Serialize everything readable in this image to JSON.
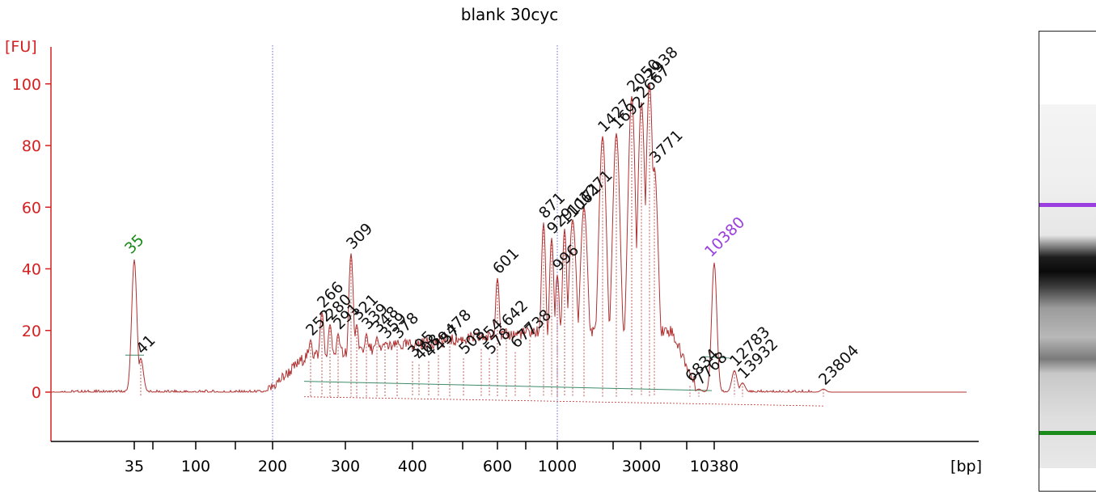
{
  "chart_data": {
    "type": "line",
    "title": "blank 30cyc",
    "ylabel": "[FU]",
    "xlabel": "[bp]",
    "ylim": [
      -16,
      112
    ],
    "y_ticks": [
      "0",
      "20",
      "40",
      "60",
      "80",
      "100"
    ],
    "x_tick_labels": [
      "35",
      "100",
      "200",
      "300",
      "400",
      "600",
      "1000",
      "3000",
      "10380"
    ],
    "grid": false,
    "colors": {
      "axis": "#d42020",
      "trace": "#b03030",
      "marker": "#1a8a1a",
      "upper_marker": "#9a3ee0",
      "baseline": "#3e8c6a",
      "region_line": "#6a6ad0"
    },
    "markers": [
      {
        "label": "35",
        "x": 166,
        "height": 43,
        "color": "green"
      },
      {
        "label": "10380",
        "x": 883,
        "height": 42,
        "color": "purple"
      }
    ],
    "region_lines_x": [
      337,
      689
    ],
    "peaks": [
      {
        "label": "41",
        "x": 174,
        "y": 11
      },
      {
        "label": "252",
        "x": 384,
        "y": 17
      },
      {
        "label": "266",
        "x": 398,
        "y": 26
      },
      {
        "label": "280",
        "x": 408,
        "y": 22
      },
      {
        "label": "291",
        "x": 418,
        "y": 19
      },
      {
        "label": "309",
        "x": 434,
        "y": 45
      },
      {
        "label": "321",
        "x": 441,
        "y": 22
      },
      {
        "label": "339",
        "x": 453,
        "y": 19
      },
      {
        "label": "348",
        "x": 466,
        "y": 18
      },
      {
        "label": "359",
        "x": 476,
        "y": 16
      },
      {
        "label": "378",
        "x": 491,
        "y": 16
      },
      {
        "label": "395",
        "x": 510,
        "y": 10
      },
      {
        "label": "408",
        "x": 518,
        "y": 9
      },
      {
        "label": "429",
        "x": 530,
        "y": 10
      },
      {
        "label": "457",
        "x": 542,
        "y": 12
      },
      {
        "label": "478",
        "x": 556,
        "y": 17
      },
      {
        "label": "508",
        "x": 573,
        "y": 11
      },
      {
        "label": "554",
        "x": 595,
        "y": 14
      },
      {
        "label": "578",
        "x": 605,
        "y": 11
      },
      {
        "label": "601",
        "x": 615,
        "y": 37
      },
      {
        "label": "642",
        "x": 626,
        "y": 20
      },
      {
        "label": "677",
        "x": 637,
        "y": 13
      },
      {
        "label": "738",
        "x": 655,
        "y": 17
      },
      {
        "label": "871",
        "x": 672,
        "y": 55
      },
      {
        "label": "929",
        "x": 682,
        "y": 50
      },
      {
        "label": "996",
        "x": 689,
        "y": 38
      },
      {
        "label": "1106",
        "x": 698,
        "y": 53
      },
      {
        "label": "1171",
        "x": 708,
        "y": 56
      },
      {
        "label": "1271",
        "x": 722,
        "y": 60
      },
      {
        "label": "1427",
        "x": 745,
        "y": 83
      },
      {
        "label": "1692",
        "x": 762,
        "y": 84
      },
      {
        "label": "2050",
        "x": 781,
        "y": 96
      },
      {
        "label": "2667",
        "x": 793,
        "y": 94
      },
      {
        "label": "2938",
        "x": 803,
        "y": 100
      },
      {
        "label": "3771",
        "x": 809,
        "y": 73
      },
      {
        "label": "6834",
        "x": 853,
        "y": 2
      },
      {
        "label": "7768",
        "x": 864,
        "y": 1
      },
      {
        "label": "12783",
        "x": 908,
        "y": 7
      },
      {
        "label": "13932",
        "x": 918,
        "y": 3
      },
      {
        "label": "23804",
        "x": 1018,
        "y": 1
      }
    ]
  }
}
